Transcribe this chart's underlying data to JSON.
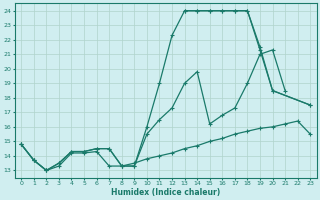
{
  "xlabel": "Humidex (Indice chaleur)",
  "bg_color": "#d0eef0",
  "grid_color": "#b0d4cc",
  "line_color": "#1a7a6a",
  "xlim": [
    -0.5,
    23.5
  ],
  "ylim": [
    12.5,
    24.5
  ],
  "xticks": [
    0,
    1,
    2,
    3,
    4,
    5,
    6,
    7,
    8,
    9,
    10,
    11,
    12,
    13,
    14,
    15,
    16,
    17,
    18,
    19,
    20,
    21,
    22,
    23
  ],
  "yticks": [
    13,
    14,
    15,
    16,
    17,
    18,
    19,
    20,
    21,
    22,
    23,
    24
  ],
  "s1x": [
    0,
    1,
    2,
    3,
    4,
    5,
    6,
    7,
    8,
    9,
    10,
    11,
    12,
    13,
    14,
    15,
    16,
    17,
    18,
    19,
    20,
    21,
    22,
    23
  ],
  "s1y": [
    14.8,
    13.7,
    13.0,
    13.3,
    14.2,
    14.2,
    14.3,
    13.3,
    13.3,
    13.5,
    13.8,
    14.0,
    14.2,
    14.5,
    14.7,
    15.0,
    15.2,
    15.5,
    15.7,
    15.9,
    16.0,
    16.2,
    16.4,
    15.5
  ],
  "s2x": [
    0,
    1,
    2,
    3,
    4,
    5,
    6,
    7,
    8,
    9,
    10,
    11,
    12,
    13,
    14,
    15,
    16,
    17,
    18,
    19,
    20,
    21,
    22,
    23
  ],
  "s2y": [
    14.8,
    13.7,
    13.0,
    13.5,
    14.3,
    14.3,
    14.5,
    14.5,
    13.3,
    13.3,
    15.5,
    16.5,
    17.3,
    19.0,
    19.8,
    16.2,
    16.8,
    17.3,
    19.0,
    21.0,
    21.3,
    18.5,
    null,
    null
  ],
  "s3x": [
    0,
    1,
    2,
    3,
    4,
    5,
    6,
    7,
    8,
    9,
    10,
    11,
    12,
    13,
    14,
    15,
    16,
    17,
    18,
    19,
    20,
    23
  ],
  "s3y": [
    14.8,
    13.7,
    13.0,
    13.5,
    14.3,
    14.3,
    14.5,
    14.5,
    13.3,
    13.3,
    16.0,
    19.0,
    22.3,
    24.0,
    24.0,
    24.0,
    24.0,
    24.0,
    24.0,
    21.3,
    18.5,
    17.5
  ],
  "s4x": [
    13,
    14,
    15,
    16,
    17,
    18,
    19,
    20,
    23
  ],
  "s4y": [
    24.0,
    24.0,
    24.0,
    24.0,
    24.0,
    24.0,
    21.5,
    18.5,
    17.5
  ]
}
